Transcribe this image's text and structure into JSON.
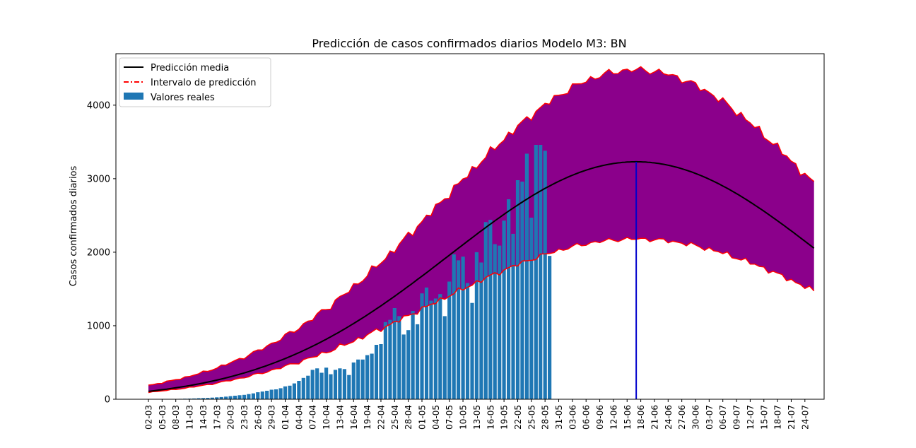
{
  "chart_data": {
    "type": "bar",
    "title": "Predicción de casos confirmados diarios Modelo M3: BN",
    "xlabel": "",
    "ylabel": "Casos confirmados diarios",
    "ylim": [
      0,
      4700
    ],
    "yticks": [
      0,
      1000,
      2000,
      3000,
      4000
    ],
    "grid": false,
    "legend_position": "top-left",
    "legend": [
      "Predicción media",
      "Intervalo de  predicción",
      "Valores reales"
    ],
    "colors": {
      "bars": "#1f77b4",
      "interval_fill": "#8b008b",
      "interval_edge": "#ff0000",
      "mean": "#000000",
      "peak_line": "#0000cc"
    },
    "start_date": "02-03",
    "xticks": [
      "02-03",
      "05-03",
      "08-03",
      "11-03",
      "14-03",
      "17-03",
      "20-03",
      "23-03",
      "26-03",
      "29-03",
      "01-04",
      "04-04",
      "07-04",
      "10-04",
      "13-04",
      "16-04",
      "19-04",
      "22-04",
      "25-04",
      "28-04",
      "01-05",
      "04-05",
      "07-05",
      "10-05",
      "13-05",
      "16-05",
      "19-05",
      "22-05",
      "25-05",
      "28-05",
      "31-05",
      "03-06",
      "06-06",
      "09-06",
      "12-06",
      "15-06",
      "18-06",
      "21-06",
      "24-06",
      "27-06",
      "30-06",
      "03-07",
      "06-07",
      "09-07",
      "12-07",
      "15-07",
      "18-07",
      "21-07",
      "24-07"
    ],
    "peak_date": "17-06",
    "peak_value": 3230,
    "series": [
      {
        "name": "Valores reales",
        "type": "bar",
        "x": [
          "02-03",
          "03-03",
          "04-03",
          "05-03",
          "06-03",
          "07-03",
          "08-03",
          "09-03",
          "10-03",
          "11-03",
          "12-03",
          "13-03",
          "14-03",
          "15-03",
          "16-03",
          "17-03",
          "18-03",
          "19-03",
          "20-03",
          "21-03",
          "22-03",
          "23-03",
          "24-03",
          "25-03",
          "26-03",
          "27-03",
          "28-03",
          "29-03",
          "30-03",
          "31-03",
          "01-04",
          "02-04",
          "03-04",
          "04-04",
          "05-04",
          "06-04",
          "07-04",
          "08-04",
          "09-04",
          "10-04",
          "11-04",
          "12-04",
          "13-04",
          "14-04",
          "15-04",
          "16-04",
          "17-04",
          "18-04",
          "19-04",
          "20-04",
          "21-04",
          "22-04",
          "23-04",
          "24-04",
          "25-04",
          "26-04",
          "27-04",
          "28-04",
          "29-04",
          "30-04",
          "01-05",
          "02-05",
          "03-05",
          "04-05",
          "05-05",
          "06-05",
          "07-05",
          "08-05",
          "09-05",
          "10-05",
          "11-05",
          "12-05",
          "13-05",
          "14-05",
          "15-05",
          "16-05",
          "17-05",
          "18-05",
          "19-05",
          "20-05",
          "21-05",
          "22-05",
          "23-05",
          "24-05",
          "25-05",
          "26-05",
          "27-05",
          "28-05",
          "29-05"
        ],
        "values": [
          0,
          1,
          2,
          2,
          3,
          4,
          5,
          6,
          8,
          9,
          11,
          14,
          16,
          18,
          22,
          26,
          30,
          36,
          42,
          48,
          55,
          60,
          70,
          80,
          95,
          105,
          115,
          130,
          135,
          150,
          175,
          185,
          215,
          250,
          290,
          320,
          400,
          420,
          360,
          430,
          340,
          400,
          420,
          410,
          330,
          500,
          540,
          540,
          600,
          620,
          740,
          750,
          1050,
          1080,
          1240,
          1130,
          880,
          940,
          1200,
          1020,
          1440,
          1520,
          1340,
          1370,
          1430,
          1130,
          1600,
          1970,
          1890,
          1940,
          1580,
          1310,
          2000,
          1860,
          2410,
          2440,
          2110,
          2090,
          2430,
          2720,
          2250,
          2980,
          2960,
          3340,
          2470,
          3460,
          3460,
          3380,
          1950
        ]
      },
      {
        "name": "Predicción media",
        "type": "line",
        "mu": 107,
        "sigma": 41,
        "peak": 3230,
        "x_range": [
          "02-03",
          "26-07"
        ]
      },
      {
        "name": "Intervalo de  predicción",
        "type": "area",
        "x_range": [
          "02-03",
          "26-07"
        ],
        "upper_peak": 4480,
        "lower_peak": 2180
      }
    ]
  }
}
